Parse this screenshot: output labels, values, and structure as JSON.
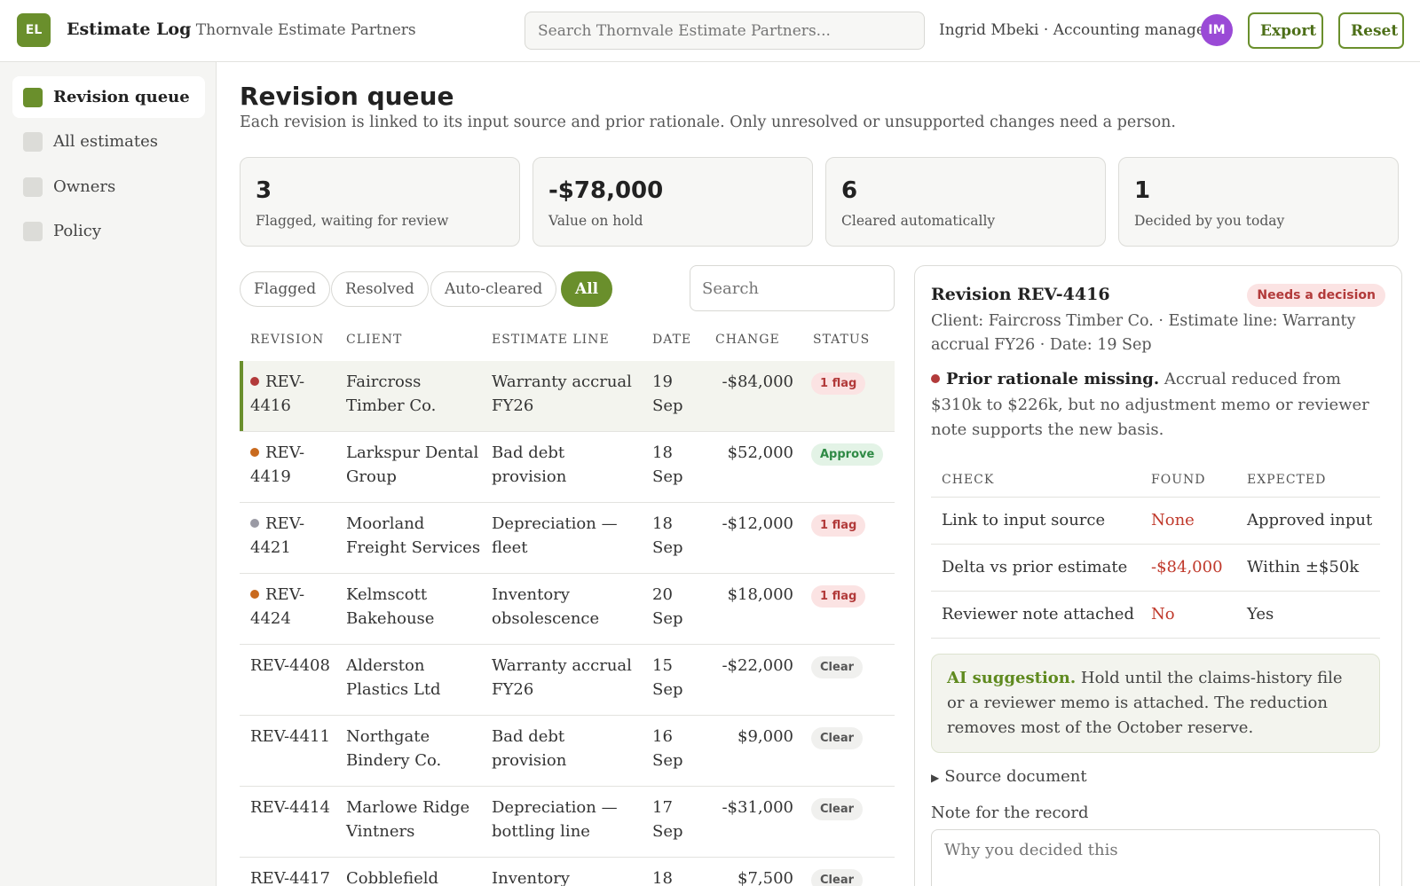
{
  "header": {
    "logo_initials": "EL",
    "app_name": "Estimate Log",
    "org": "· Thornvale Estimate Partners",
    "search_placeholder": "Search Thornvale Estimate Partners...",
    "user": "Ingrid Mbeki · Accounting manager",
    "avatar_initials": "IM",
    "export_label": "Export",
    "reset_label": "Reset"
  },
  "sidebar": {
    "items": [
      {
        "label": "Revision queue",
        "active": true
      },
      {
        "label": "All estimates",
        "active": false
      },
      {
        "label": "Owners",
        "active": false
      },
      {
        "label": "Policy",
        "active": false
      }
    ]
  },
  "page": {
    "title": "Revision queue",
    "subtitle": "Each revision is linked to its input source and prior rationale. Only unresolved or unsupported changes need a person."
  },
  "stats": [
    {
      "value": "3",
      "label": "Flagged, waiting for review"
    },
    {
      "value": "-$78,000",
      "label": "Value on hold"
    },
    {
      "value": "6",
      "label": "Cleared automatically"
    },
    {
      "value": "1",
      "label": "Decided by you today"
    }
  ],
  "filters": {
    "pills": [
      "Flagged",
      "Resolved",
      "Auto-cleared",
      "All"
    ],
    "active": "All",
    "search_placeholder": "Search"
  },
  "table": {
    "headers": [
      "REVISION",
      "CLIENT",
      "ESTIMATE LINE",
      "DATE",
      "CHANGE",
      "STATUS"
    ],
    "rows": [
      {
        "id_a": "REV-",
        "id_b": "4416",
        "client_a": "Faircross",
        "client_b": "Timber Co.",
        "line_a": "Warranty accrual",
        "line_b": "FY26",
        "day": "19",
        "month": "Sep",
        "change": "-$84,000",
        "status": "1 flag",
        "kind": "flag",
        "dot": "#b23a3a",
        "selected": true
      },
      {
        "id_a": "REV-",
        "id_b": "4419",
        "client_a": "Larkspur Dental",
        "client_b": "Group",
        "line_a": "Bad debt",
        "line_b": "provision",
        "day": "18",
        "month": "Sep",
        "change": "$52,000",
        "status": "Approve",
        "kind": "approve",
        "dot": "#c96a1e",
        "selected": false
      },
      {
        "id_a": "REV-",
        "id_b": "4421",
        "client_a": "Moorland",
        "client_b": "Freight Services",
        "line_a": "Depreciation —",
        "line_b": "fleet",
        "day": "18",
        "month": "Sep",
        "change": "-$12,000",
        "status": "1 flag",
        "kind": "flag",
        "dot": "#9a9aa4",
        "selected": false
      },
      {
        "id_a": "REV-",
        "id_b": "4424",
        "client_a": "Kelmscott",
        "client_b": "Bakehouse",
        "line_a": "Inventory",
        "line_b": "obsolescence",
        "day": "20",
        "month": "Sep",
        "change": "$18,000",
        "status": "1 flag",
        "kind": "flag",
        "dot": "#c96a1e",
        "selected": false
      },
      {
        "id_a": "REV-4408",
        "id_b": "",
        "client_a": "Alderston",
        "client_b": "Plastics Ltd",
        "line_a": "Warranty accrual",
        "line_b": "FY26",
        "day": "15",
        "month": "Sep",
        "change": "-$22,000",
        "status": "Clear",
        "kind": "clear",
        "dot": "",
        "selected": false
      },
      {
        "id_a": "REV-4411",
        "id_b": "",
        "client_a": "Northgate",
        "client_b": "Bindery Co.",
        "line_a": "Bad debt",
        "line_b": "provision",
        "day": "16",
        "month": "Sep",
        "change": "$9,000",
        "status": "Clear",
        "kind": "clear",
        "dot": "",
        "selected": false
      },
      {
        "id_a": "REV-4414",
        "id_b": "",
        "client_a": "Marlowe Ridge",
        "client_b": "Vintners",
        "line_a": "Depreciation —",
        "line_b": "bottling line",
        "day": "17",
        "month": "Sep",
        "change": "-$31,000",
        "status": "Clear",
        "kind": "clear",
        "dot": "",
        "selected": false
      },
      {
        "id_a": "REV-4417",
        "id_b": "",
        "client_a": "Cobblefield",
        "client_b": "",
        "line_a": "Inventory",
        "line_b": "",
        "day": "18",
        "month": "",
        "change": "$7,500",
        "status": "Clear",
        "kind": "clear",
        "dot": "",
        "selected": false
      }
    ]
  },
  "panel": {
    "title": "Revision REV-4416",
    "badge": "Needs a decision",
    "meta": "Client: Faircross Timber Co. · Estimate line: Warranty accrual FY26 · Date: 19 Sep",
    "issue_title": "Prior rationale missing.",
    "issue_text": "Accrual reduced from $310k to $226k, but no adjustment memo or reviewer note supports the new basis.",
    "checks_headers": [
      "CHECK",
      "FOUND",
      "EXPECTED"
    ],
    "checks": [
      {
        "check": "Link to input source",
        "found": "None",
        "expected": "Approved input"
      },
      {
        "check": "Delta vs prior estimate",
        "found": "-$84,000",
        "expected": "Within ±$50k"
      },
      {
        "check": "Reviewer note attached",
        "found": "No",
        "expected": "Yes"
      }
    ],
    "ai_label": "AI suggestion.",
    "ai_text": "Hold until the claims-history file or a reviewer memo is attached. The reduction removes most of the October reserve.",
    "source_doc": "Source document",
    "note_label": "Note for the record",
    "note_placeholder": "Why you decided this"
  }
}
